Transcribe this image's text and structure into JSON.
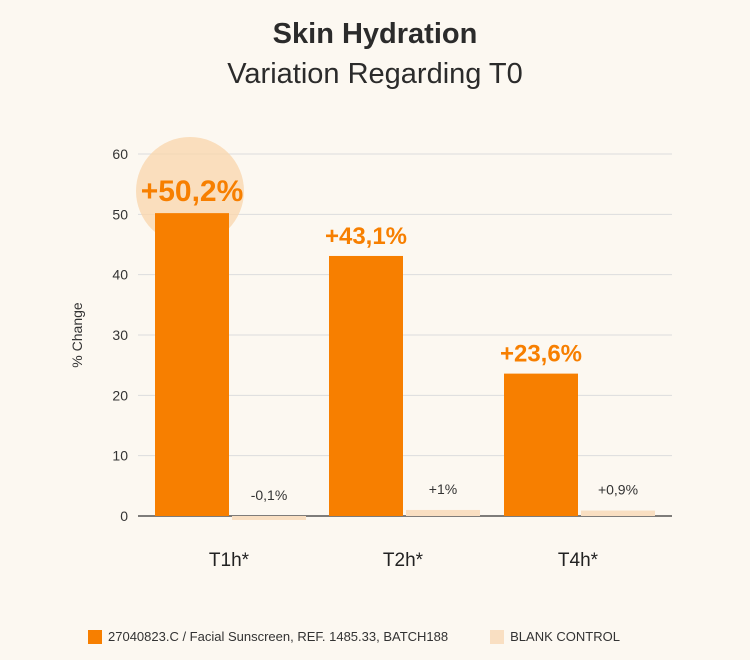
{
  "title": "Skin Hydration",
  "subtitle": "Variation Regarding T0",
  "colors": {
    "product": "#f77f00",
    "control": "#f9dfc2",
    "highlight": "#f9d6ab",
    "grid": "#dddddd",
    "value_label": "#f77f00"
  },
  "legend": [
    {
      "label": "27040823.C / Facial Sunscreen, REF. 1485.33, BATCH188",
      "color": "#f77f00"
    },
    {
      "label": "BLANK CONTROL",
      "color": "#f9dfc2"
    }
  ],
  "chart_data": {
    "type": "bar",
    "title": "Skin Hydration",
    "subtitle": "Variation Regarding T0",
    "ylabel": "% Change",
    "xlabel": "",
    "categories": [
      "T1h*",
      "T2h*",
      "T4h*"
    ],
    "ylim": [
      0,
      60
    ],
    "yticks": [
      0,
      10,
      20,
      30,
      40,
      50,
      60
    ],
    "grid": true,
    "legend_position": "bottom",
    "series": [
      {
        "name": "27040823.C / Facial Sunscreen, REF. 1485.33, BATCH188",
        "values": [
          50.2,
          43.1,
          23.6
        ],
        "labels": [
          "+50,2%",
          "+43,1%",
          "+23,6%"
        ]
      },
      {
        "name": "BLANK CONTROL",
        "values": [
          -0.1,
          1,
          0.9
        ],
        "labels": [
          "-0,1%",
          "+1%",
          "+0,9%"
        ]
      }
    ]
  }
}
